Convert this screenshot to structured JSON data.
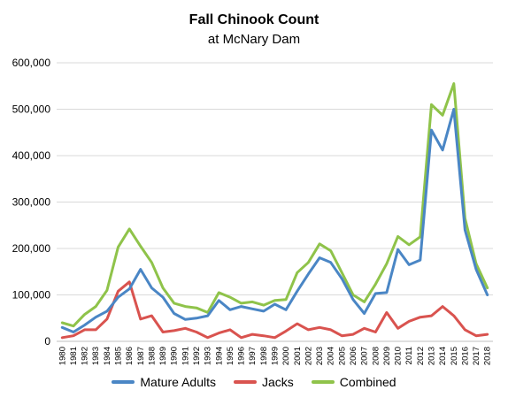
{
  "chart_data": {
    "type": "line",
    "title": "Fall Chinook Count",
    "subtitle": "at McNary Dam",
    "xlabel": "",
    "ylabel": "",
    "ylim": [
      0,
      600000
    ],
    "yticks": [
      0,
      100000,
      200000,
      300000,
      400000,
      500000,
      600000
    ],
    "ytick_labels": [
      "0",
      "100,000",
      "200,000",
      "300,000",
      "400,000",
      "500,000",
      "600,000"
    ],
    "grid": true,
    "legend_position": "bottom",
    "x": [
      "1980",
      "1981",
      "1982",
      "1983",
      "1984",
      "1985",
      "1986",
      "1987",
      "1988",
      "1989",
      "1990",
      "1991",
      "1992",
      "1993",
      "1994",
      "1995",
      "1996",
      "1997",
      "1998",
      "1999",
      "2000",
      "2001",
      "2002",
      "2003",
      "2004",
      "2005",
      "2006",
      "2007",
      "2008",
      "2009",
      "2010",
      "2011",
      "2012",
      "2013",
      "2014",
      "2015",
      "2016",
      "2017",
      "2018"
    ],
    "series": [
      {
        "name": "Mature Adults",
        "color": "#4a86c5",
        "values": [
          30000,
          20000,
          35000,
          52000,
          65000,
          95000,
          113000,
          155000,
          115000,
          95000,
          60000,
          47000,
          50000,
          55000,
          88000,
          68000,
          75000,
          70000,
          65000,
          80000,
          68000,
          108000,
          145000,
          180000,
          170000,
          135000,
          90000,
          60000,
          103000,
          105000,
          198000,
          165000,
          175000,
          455000,
          412000,
          500000,
          240000,
          155000,
          100000
        ]
      },
      {
        "name": "Jacks",
        "color": "#d9534f",
        "values": [
          8000,
          12000,
          25000,
          25000,
          48000,
          108000,
          128000,
          48000,
          55000,
          20000,
          23000,
          28000,
          20000,
          8000,
          18000,
          25000,
          8000,
          15000,
          12000,
          8000,
          22000,
          38000,
          25000,
          30000,
          25000,
          12000,
          15000,
          28000,
          20000,
          62000,
          28000,
          43000,
          52000,
          55000,
          75000,
          55000,
          25000,
          12000,
          15000
        ]
      },
      {
        "name": "Combined",
        "color": "#8fc34a",
        "values": [
          40000,
          33000,
          58000,
          75000,
          110000,
          203000,
          242000,
          205000,
          170000,
          115000,
          82000,
          75000,
          72000,
          62000,
          105000,
          95000,
          82000,
          85000,
          78000,
          88000,
          90000,
          148000,
          170000,
          210000,
          195000,
          148000,
          100000,
          85000,
          123000,
          167000,
          226000,
          208000,
          225000,
          510000,
          487000,
          555000,
          265000,
          167000,
          115000
        ]
      }
    ]
  }
}
